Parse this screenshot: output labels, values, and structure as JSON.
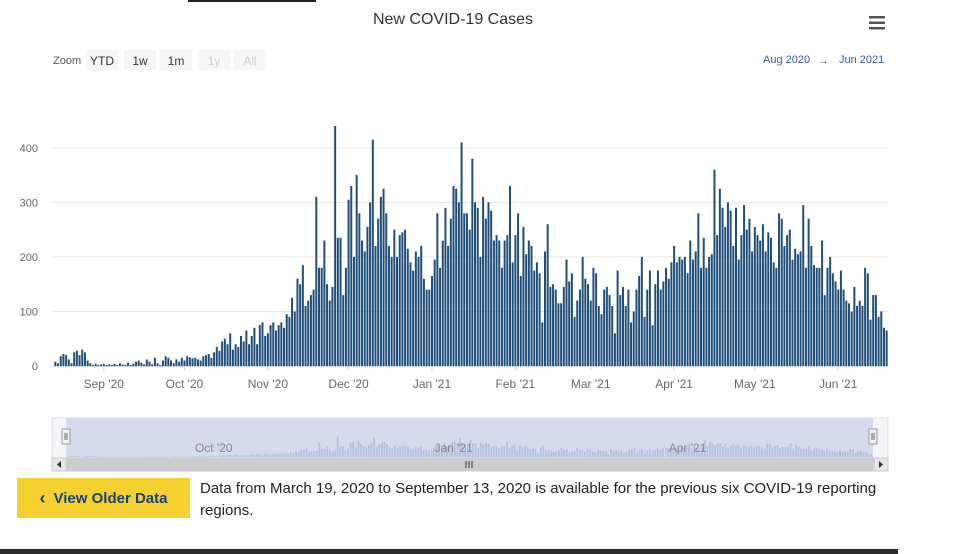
{
  "colors": {
    "bar": "#1f4e79",
    "accent": "#335cad",
    "navigator_fill": "#c6d0e8",
    "button_bg": "#f5d130",
    "button_text": "#1a3f7a"
  },
  "toolbar": {
    "zoom_label": "Zoom",
    "buttons": [
      "YTD",
      "1w",
      "1m",
      "1y",
      "All"
    ],
    "disabled_buttons": [
      "1y",
      "All"
    ],
    "range_from": "Aug 2020",
    "range_arrow": "→",
    "range_to": "Jun 2021",
    "menu_icon": "hamburger-menu-icon"
  },
  "navigator": {
    "labels": [
      "Oct '20",
      "Jan '21",
      "Apr '21"
    ],
    "scroll_left_icon": "arrow-left-icon",
    "scroll_right_icon": "arrow-right-icon",
    "handle_icon": "grip-icon"
  },
  "older_data": {
    "button_label": "View Older Data",
    "icon": "chevron-left-icon",
    "note": "Data from March 19, 2020 to September 13, 2020 is available for the previous six COVID-19 reporting regions."
  },
  "chart_data": {
    "type": "bar",
    "title": "New COVID-19 Cases",
    "xlabel": "",
    "ylabel": "",
    "ylim": [
      0,
      440
    ],
    "yticks": [
      0,
      100,
      200,
      300,
      400
    ],
    "grid": true,
    "x_start": "2020-08-14",
    "x_end": "2021-06-10",
    "month_ticks": [
      {
        "label": "Sep '20",
        "day": 18
      },
      {
        "label": "Oct '20",
        "day": 48
      },
      {
        "label": "Nov '20",
        "day": 79
      },
      {
        "label": "Dec '20",
        "day": 109
      },
      {
        "label": "Jan '21",
        "day": 140
      },
      {
        "label": "Feb '21",
        "day": 171
      },
      {
        "label": "Mar '21",
        "day": 199
      },
      {
        "label": "Apr '21",
        "day": 230
      },
      {
        "label": "May '21",
        "day": 260
      },
      {
        "label": "Jun '21",
        "day": 291
      }
    ],
    "values": [
      8,
      5,
      18,
      22,
      20,
      12,
      5,
      25,
      28,
      20,
      30,
      25,
      10,
      5,
      2,
      4,
      2,
      3,
      4,
      2,
      3,
      2,
      4,
      2,
      5,
      3,
      2,
      6,
      2,
      4,
      8,
      10,
      6,
      3,
      12,
      8,
      3,
      15,
      5,
      2,
      10,
      18,
      15,
      10,
      5,
      12,
      8,
      15,
      10,
      18,
      16,
      14,
      15,
      12,
      10,
      18,
      20,
      22,
      15,
      25,
      35,
      28,
      45,
      50,
      40,
      60,
      30,
      40,
      35,
      55,
      45,
      65,
      40,
      55,
      70,
      40,
      75,
      80,
      55,
      60,
      75,
      80,
      65,
      75,
      80,
      70,
      95,
      90,
      125,
      100,
      160,
      150,
      185,
      110,
      120,
      130,
      140,
      310,
      180,
      180,
      230,
      150,
      120,
      145,
      440,
      235,
      235,
      130,
      180,
      305,
      330,
      200,
      350,
      280,
      230,
      210,
      255,
      300,
      415,
      220,
      270,
      310,
      325,
      280,
      220,
      200,
      250,
      200,
      240,
      245,
      250,
      215,
      190,
      175,
      210,
      200,
      220,
      160,
      140,
      140,
      165,
      195,
      280,
      180,
      230,
      290,
      220,
      270,
      330,
      325,
      300,
      410,
      280,
      280,
      250,
      380,
      300,
      290,
      200,
      310,
      270,
      300,
      285,
      230,
      240,
      230,
      180,
      230,
      240,
      330,
      190,
      240,
      280,
      165,
      255,
      205,
      230,
      220,
      175,
      190,
      170,
      80,
      210,
      260,
      145,
      150,
      140,
      115,
      115,
      145,
      195,
      155,
      170,
      90,
      120,
      140,
      200,
      160,
      150,
      120,
      180,
      170,
      110,
      95,
      140,
      145,
      130,
      110,
      60,
      175,
      130,
      145,
      110,
      140,
      80,
      100,
      140,
      165,
      200,
      90,
      140,
      175,
      75,
      150,
      175,
      140,
      155,
      180,
      160,
      190,
      220,
      190,
      200,
      195,
      200,
      170,
      230,
      195,
      210,
      280,
      180,
      235,
      180,
      200,
      205,
      360,
      240,
      325,
      290,
      255,
      300,
      285,
      220,
      290,
      195,
      240,
      295,
      250,
      270,
      210,
      255,
      240,
      230,
      260,
      210,
      245,
      235,
      190,
      180,
      280,
      270,
      220,
      240,
      250,
      195,
      215,
      205,
      210,
      295,
      180,
      270,
      220,
      185,
      180,
      180,
      230,
      130,
      180,
      200,
      170,
      155,
      140,
      175,
      140,
      120,
      115,
      100,
      145,
      110,
      120,
      110,
      180,
      170,
      85,
      130,
      130,
      90,
      100,
      70,
      65
    ]
  }
}
